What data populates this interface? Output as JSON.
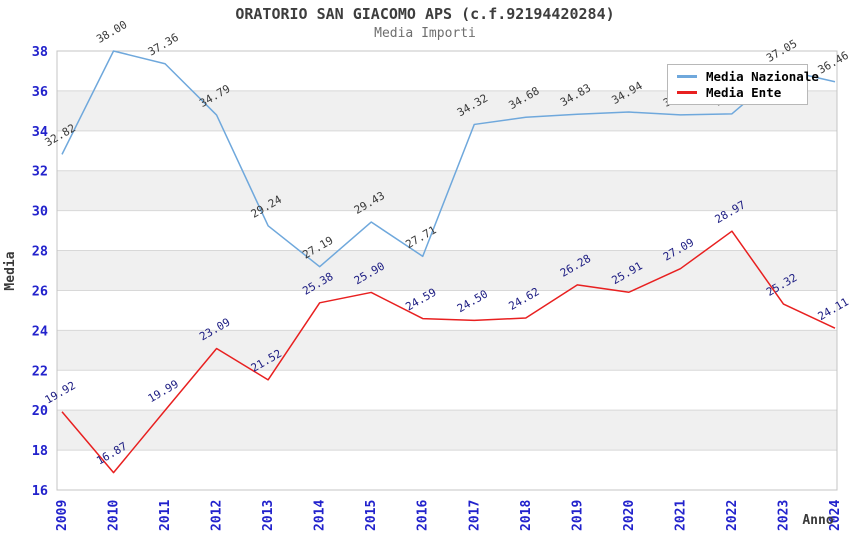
{
  "title": "ORATORIO SAN GIACOMO APS (c.f.92194420284)",
  "subtitle": "Media Importi",
  "legend": {
    "items": [
      {
        "label": "Media Nazionale",
        "color": "#6fa8dc"
      },
      {
        "label": "Media Ente",
        "color": "#e82020"
      }
    ]
  },
  "chart_data": {
    "type": "line",
    "x": [
      "2009",
      "2010",
      "2011",
      "2012",
      "2013",
      "2014",
      "2015",
      "2016",
      "2017",
      "2018",
      "2019",
      "2020",
      "2021",
      "2022",
      "2023",
      "2024"
    ],
    "series": [
      {
        "name": "Media Nazionale",
        "color": "#6fa8dc",
        "label_color": "#3a3a3a",
        "values": [
          32.82,
          38.0,
          37.36,
          34.79,
          29.24,
          27.19,
          29.43,
          27.71,
          34.32,
          34.68,
          34.83,
          34.94,
          34.8,
          34.85,
          37.05,
          36.46
        ]
      },
      {
        "name": "Media Ente",
        "color": "#e82020",
        "label_color": "#1c1c82",
        "values": [
          19.92,
          16.87,
          19.99,
          23.09,
          21.52,
          25.38,
          25.9,
          24.59,
          24.5,
          24.62,
          26.28,
          25.91,
          27.09,
          28.97,
          25.32,
          24.11
        ]
      }
    ],
    "xlabel": "Anno",
    "ylabel": "Media",
    "ylim": [
      16,
      38
    ],
    "ytick_step": 2,
    "yticks": [
      16,
      18,
      20,
      22,
      24,
      26,
      28,
      30,
      32,
      34,
      36,
      38
    ],
    "grid": "horizontal gridlines with alternating gray bands",
    "band_color": "#f0f0f0",
    "gridline_color": "#d8d8d8",
    "axis_tick_color": "#2222cc",
    "legend_position": "top-right-overlapping-plot",
    "note": "Media Nazionale point labels for 2021 and 2022 are occluded by the legend box; values estimated from line position"
  }
}
